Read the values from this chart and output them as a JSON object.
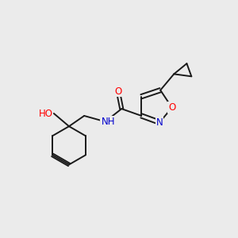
{
  "bg_color": "#ebebeb",
  "bond_color": "#1a1a1a",
  "atom_colors": {
    "O": "#ff0000",
    "N": "#0000cc",
    "H_color": "#5f9ea0",
    "C": "#1a1a1a"
  },
  "lw": 1.4,
  "fontsize": 8.5
}
